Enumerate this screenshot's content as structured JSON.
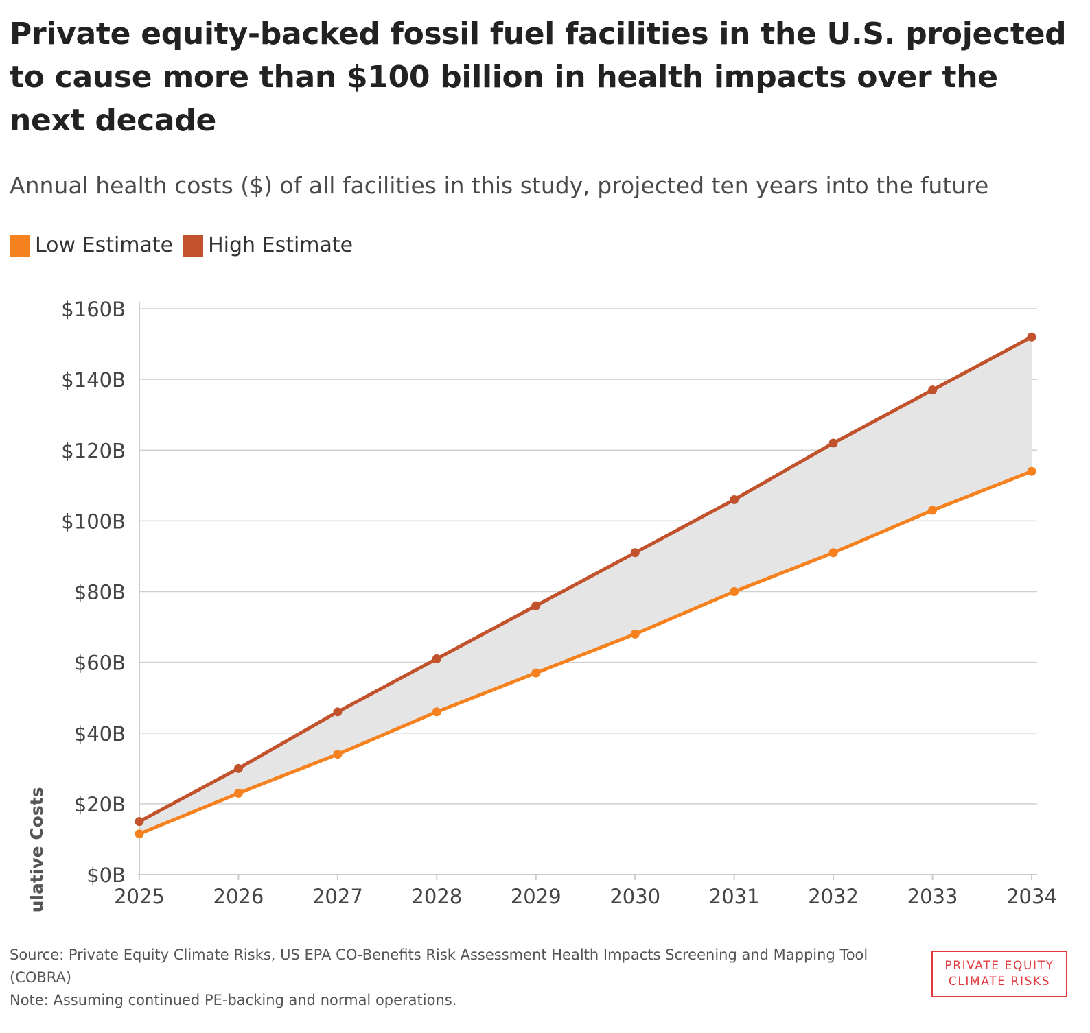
{
  "title": "Private equity-backed fossil fuel facilities in the U.S. projected to cause more than $100 billion in health impacts over the next decade",
  "subtitle": "Annual health costs ($) of all facilities in this study, projected ten years into the future",
  "legend": [
    {
      "label": "Low Estimate",
      "color": "#f5821f"
    },
    {
      "label": "High Estimate",
      "color": "#c1522b"
    }
  ],
  "footer": {
    "source": "Source: Private Equity Climate Risks, US EPA CO-Benefits Risk Assessment Health Impacts Screening and Mapping Tool (COBRA)",
    "note": "Note: Assuming continued PE-backing and normal operations."
  },
  "logo": {
    "line1": "PRIVATE EQUITY",
    "line2": "CLIMATE RISKS"
  },
  "colors": {
    "band_fill": "#e5e5e5",
    "grid": "#d0d0d0",
    "axis": "#cccccc"
  },
  "chart_data": {
    "type": "line",
    "title": "Private equity-backed fossil fuel facilities in the U.S. projected to cause more than $100 billion in health impacts over the next decade",
    "subtitle": "Annual health costs ($) of all facilities in this study, projected ten years into the future",
    "xlabel": "",
    "ylabel": "Cumulative Costs",
    "x": [
      2025,
      2026,
      2027,
      2028,
      2029,
      2030,
      2031,
      2032,
      2033,
      2034
    ],
    "ylim": [
      0,
      160
    ],
    "yticks": [
      0,
      20,
      40,
      60,
      80,
      100,
      120,
      140,
      160
    ],
    "ytick_labels": [
      "$0B",
      "$20B",
      "$40B",
      "$60B",
      "$80B",
      "$100B",
      "$120B",
      "$140B",
      "$160B"
    ],
    "xtick_labels": [
      "2025",
      "2026",
      "2027",
      "2028",
      "2029",
      "2030",
      "2031",
      "2032",
      "2033",
      "2034"
    ],
    "unit": "B",
    "series": [
      {
        "name": "Low Estimate",
        "color": "#f5821f",
        "values": [
          11.5,
          23,
          34,
          46,
          57,
          68,
          80,
          91,
          103,
          114
        ]
      },
      {
        "name": "High Estimate",
        "color": "#c1522b",
        "values": [
          15,
          30,
          46,
          61,
          76,
          91,
          106,
          122,
          137,
          152
        ]
      }
    ],
    "fill_between": true,
    "grid": true,
    "legend_position": "top-left"
  }
}
